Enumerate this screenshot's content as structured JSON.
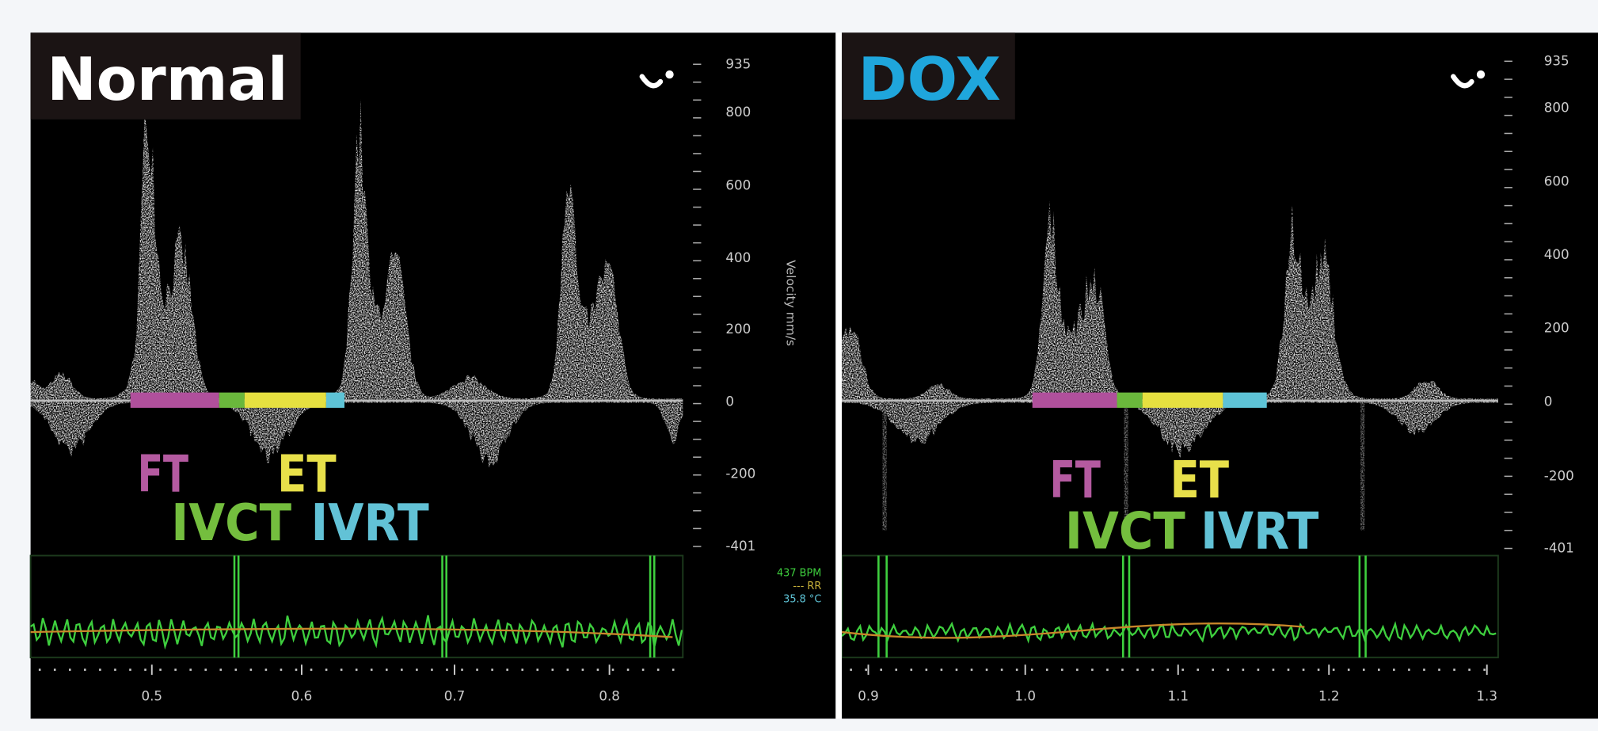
{
  "panels": [
    {
      "title": "Normal",
      "y_ticks": [
        "935",
        "800",
        "600",
        "400",
        "200",
        "0",
        "-200",
        "-401"
      ],
      "y_label": "Velocity mm/s",
      "phase_labels": [
        "FT",
        "ET",
        "IVCT",
        "IVRT"
      ],
      "vitals": [
        "437 BPM",
        "--- RR",
        "35.8 °C"
      ],
      "x_ticks": [
        "0.5",
        "0.6",
        "0.7",
        "0.8"
      ]
    },
    {
      "title": "DOX",
      "y_ticks": [
        "935",
        "800",
        "600",
        "400",
        "200",
        "0",
        "-200",
        "-401"
      ],
      "phase_labels": [
        "FT",
        "ET",
        "IVCT",
        "IVRT"
      ],
      "x_ticks": [
        "0.9",
        "1.0",
        "1.1",
        "1.2",
        "1.3"
      ]
    }
  ]
}
